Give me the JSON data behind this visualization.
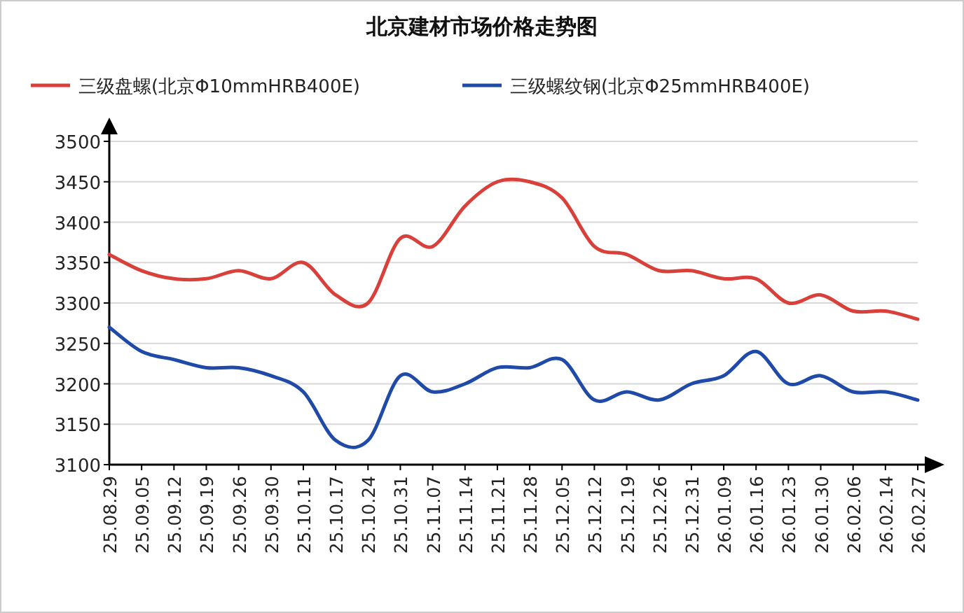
{
  "chart_data": {
    "type": "line",
    "title": "北京建材市场价格走势图",
    "categories": [
      "25.08.29",
      "25.09.05",
      "25.09.12",
      "25.09.19",
      "25.09.26",
      "25.09.30",
      "25.10.11",
      "25.10.17",
      "25.10.24",
      "25.10.31",
      "25.11.07",
      "25.11.14",
      "25.11.21",
      "25.11.28",
      "25.12.05",
      "25.12.12",
      "25.12.19",
      "25.12.26",
      "25.12.31",
      "26.01.09",
      "26.01.16",
      "26.01.23",
      "26.01.30",
      "26.02.06",
      "26.02.14",
      "26.02.27"
    ],
    "series": [
      {
        "name": "三级盘螺(北京Φ10mmHRB400E)",
        "color": "#d9403a",
        "values": [
          3360,
          3340,
          3330,
          3330,
          3340,
          3330,
          3350,
          3310,
          3300,
          3380,
          3370,
          3420,
          3450,
          3450,
          3430,
          3370,
          3360,
          3340,
          3340,
          3330,
          3330,
          3300,
          3310,
          3290,
          3290,
          3280
        ]
      },
      {
        "name": "三级螺纹钢(北京Φ25mmHRB400E)",
        "color": "#1f4aa8",
        "values": [
          3270,
          3240,
          3230,
          3220,
          3220,
          3210,
          3190,
          3130,
          3130,
          3210,
          3190,
          3200,
          3220,
          3220,
          3230,
          3180,
          3190,
          3180,
          3200,
          3210,
          3240,
          3200,
          3210,
          3190,
          3190,
          3180
        ]
      }
    ],
    "ylim": [
      3100,
      3500
    ],
    "yticks": [
      3100,
      3150,
      3200,
      3250,
      3300,
      3350,
      3400,
      3450,
      3500
    ],
    "grid": "y",
    "legend": "top",
    "marker": "none",
    "line_style": "solid"
  }
}
